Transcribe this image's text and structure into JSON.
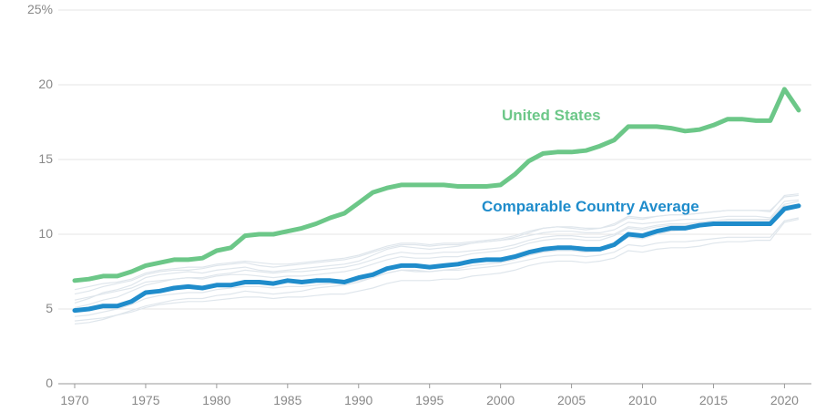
{
  "chart_data": {
    "type": "line",
    "title": "",
    "xlabel": "",
    "ylabel": "",
    "x": [
      1970,
      1971,
      1972,
      1973,
      1974,
      1975,
      1976,
      1977,
      1978,
      1979,
      1980,
      1981,
      1982,
      1983,
      1984,
      1985,
      1986,
      1987,
      1988,
      1989,
      1990,
      1991,
      1992,
      1993,
      1994,
      1995,
      1996,
      1997,
      1998,
      1999,
      2000,
      2001,
      2002,
      2003,
      2004,
      2005,
      2006,
      2007,
      2008,
      2009,
      2010,
      2011,
      2012,
      2013,
      2014,
      2015,
      2016,
      2017,
      2018,
      2019,
      2020,
      2021
    ],
    "xlim": [
      1970,
      2021
    ],
    "ylim": [
      0,
      25
    ],
    "x_ticks": [
      "1970",
      "1975",
      "1980",
      "1985",
      "1990",
      "1995",
      "2000",
      "2005",
      "2010",
      "2015",
      "2020"
    ],
    "y_ticks": [
      "0",
      "5",
      "10",
      "15",
      "20",
      "25%"
    ],
    "grid": "horizontal",
    "series": [
      {
        "name": "United States",
        "color": "#6cc788",
        "values": [
          6.9,
          7.0,
          7.2,
          7.2,
          7.5,
          7.9,
          8.1,
          8.3,
          8.3,
          8.4,
          8.9,
          9.1,
          9.9,
          10.0,
          10.0,
          10.2,
          10.4,
          10.7,
          11.1,
          11.4,
          12.1,
          12.8,
          13.1,
          13.3,
          13.3,
          13.3,
          13.3,
          13.2,
          13.2,
          13.2,
          13.3,
          14.0,
          14.9,
          15.4,
          15.5,
          15.5,
          15.6,
          15.9,
          16.3,
          17.2,
          17.2,
          17.2,
          17.1,
          16.9,
          17.0,
          17.3,
          17.7,
          17.7,
          17.6,
          17.6,
          19.7,
          18.3
        ]
      },
      {
        "name": "Comparable Country Average",
        "color": "#1f8ccb",
        "values": [
          4.9,
          5.0,
          5.2,
          5.2,
          5.5,
          6.1,
          6.2,
          6.4,
          6.5,
          6.4,
          6.6,
          6.6,
          6.8,
          6.8,
          6.7,
          6.9,
          6.8,
          6.9,
          6.9,
          6.8,
          7.1,
          7.3,
          7.7,
          7.9,
          7.9,
          7.8,
          7.9,
          8.0,
          8.2,
          8.3,
          8.3,
          8.5,
          8.8,
          9.0,
          9.1,
          9.1,
          9.0,
          9.0,
          9.3,
          10.0,
          9.9,
          10.2,
          10.4,
          10.4,
          10.6,
          10.7,
          10.7,
          10.7,
          10.7,
          10.7,
          11.7,
          11.9
        ]
      }
    ],
    "background_lines_color": "#dfe6ec",
    "background_lines": [
      [
        4.0,
        4.1,
        4.3,
        4.6,
        4.9,
        5.2,
        5.4,
        5.6,
        5.7,
        5.7,
        5.9,
        6.0,
        6.2,
        6.1,
        6.0,
        6.1,
        6.2,
        6.4,
        6.5,
        6.6,
        6.8,
        7.1,
        7.4,
        7.6,
        7.5,
        7.5,
        7.6,
        7.7,
        7.9,
        8.0,
        8.1,
        8.3,
        8.6,
        8.8,
        8.9,
        8.9,
        8.8,
        8.9,
        9.2,
        9.8,
        9.7,
        10.0,
        10.2,
        10.3,
        10.5,
        10.6,
        10.6,
        10.7,
        10.7,
        10.6,
        11.8,
        12.0
      ],
      [
        5.4,
        5.7,
        6.1,
        6.3,
        6.6,
        7.1,
        7.3,
        7.4,
        7.5,
        7.4,
        7.6,
        7.7,
        7.8,
        7.6,
        7.5,
        7.6,
        7.7,
        7.8,
        7.9,
        8.0,
        8.2,
        8.6,
        9.0,
        9.2,
        9.1,
        9.0,
        9.1,
        9.2,
        9.4,
        9.5,
        9.6,
        9.8,
        10.1,
        10.4,
        10.5,
        10.4,
        10.3,
        10.4,
        10.7,
        11.2,
        11.1,
        11.2,
        11.3,
        11.3,
        11.4,
        11.5,
        11.6,
        11.6,
        11.6,
        11.5,
        12.6,
        12.7
      ],
      [
        6.0,
        6.2,
        6.5,
        6.7,
        6.9,
        7.3,
        7.5,
        7.6,
        7.6,
        7.7,
        7.9,
        8.0,
        8.1,
        7.9,
        7.8,
        7.9,
        8.0,
        8.1,
        8.2,
        8.3,
        8.5,
        8.8,
        9.1,
        9.3,
        9.3,
        9.2,
        9.3,
        9.3,
        9.4,
        9.5,
        9.6,
        9.7,
        9.9,
        10.1,
        10.2,
        10.2,
        10.1,
        10.1,
        10.3,
        10.8,
        10.7,
        10.8,
        10.9,
        11.0,
        11.0,
        11.1,
        11.2,
        11.2,
        11.2,
        11.1,
        12.2,
        12.3
      ],
      [
        4.5,
        4.6,
        4.8,
        5.0,
        5.3,
        5.7,
        5.9,
        6.0,
        6.1,
        6.1,
        6.3,
        6.4,
        6.5,
        6.5,
        6.4,
        6.5,
        6.5,
        6.6,
        6.7,
        6.7,
        6.9,
        7.1,
        7.4,
        7.6,
        7.6,
        7.5,
        7.6,
        7.6,
        7.7,
        7.8,
        7.9,
        8.1,
        8.3,
        8.5,
        8.6,
        8.6,
        8.5,
        8.6,
        8.8,
        9.3,
        9.2,
        9.4,
        9.5,
        9.5,
        9.6,
        9.7,
        9.8,
        9.8,
        9.8,
        9.8,
        10.9,
        11.1
      ],
      [
        5.1,
        5.3,
        5.6,
        5.8,
        6.2,
        6.6,
        6.8,
        7.0,
        7.1,
        7.1,
        7.3,
        7.4,
        7.6,
        7.5,
        7.4,
        7.5,
        7.5,
        7.6,
        7.7,
        7.8,
        8.0,
        8.3,
        8.6,
        8.8,
        8.7,
        8.7,
        8.8,
        8.8,
        8.9,
        9.0,
        9.1,
        9.3,
        9.6,
        9.8,
        9.9,
        9.9,
        9.8,
        9.8,
        10.0,
        10.5,
        10.4,
        10.6,
        10.7,
        10.7,
        10.8,
        10.9,
        11.0,
        11.0,
        11.0,
        11.0,
        12.0,
        12.2
      ],
      [
        4.2,
        4.3,
        4.4,
        4.6,
        4.8,
        5.1,
        5.3,
        5.4,
        5.5,
        5.5,
        5.6,
        5.7,
        5.8,
        5.8,
        5.7,
        5.8,
        5.8,
        5.9,
        6.0,
        6.0,
        6.2,
        6.4,
        6.7,
        6.9,
        6.9,
        6.9,
        7.0,
        7.0,
        7.2,
        7.3,
        7.4,
        7.6,
        7.9,
        8.1,
        8.2,
        8.2,
        8.1,
        8.2,
        8.4,
        8.9,
        8.8,
        9.0,
        9.1,
        9.1,
        9.2,
        9.4,
        9.5,
        9.5,
        9.6,
        9.6,
        10.8,
        11.0
      ],
      [
        5.6,
        5.8,
        6.0,
        6.2,
        6.4,
        6.8,
        6.9,
        7.0,
        7.1,
        7.0,
        7.2,
        7.3,
        7.3,
        7.2,
        7.1,
        7.2,
        7.2,
        7.3,
        7.4,
        7.5,
        7.7,
        8.0,
        8.3,
        8.5,
        8.4,
        8.4,
        8.5,
        8.5,
        8.7,
        8.8,
        8.9,
        9.1,
        9.4,
        9.6,
        9.7,
        9.7,
        9.6,
        9.6,
        9.9,
        10.4,
        10.3,
        10.5,
        10.6,
        10.6,
        10.7,
        10.8,
        10.9,
        10.9,
        10.9,
        10.9,
        11.9,
        12.0
      ],
      [
        6.3,
        6.5,
        6.7,
        6.8,
        7.0,
        7.4,
        7.6,
        7.7,
        7.8,
        7.8,
        8.0,
        8.1,
        8.2,
        8.1,
        8.0,
        8.0,
        8.1,
        8.2,
        8.3,
        8.4,
        8.6,
        8.9,
        9.2,
        9.4,
        9.4,
        9.3,
        9.4,
        9.4,
        9.5,
        9.6,
        9.7,
        9.9,
        10.2,
        10.4,
        10.5,
        10.5,
        10.4,
        10.4,
        10.6,
        11.1,
        11.0,
        11.2,
        11.3,
        11.3,
        11.4,
        11.5,
        11.6,
        11.6,
        11.6,
        11.6,
        12.5,
        12.6
      ]
    ]
  }
}
